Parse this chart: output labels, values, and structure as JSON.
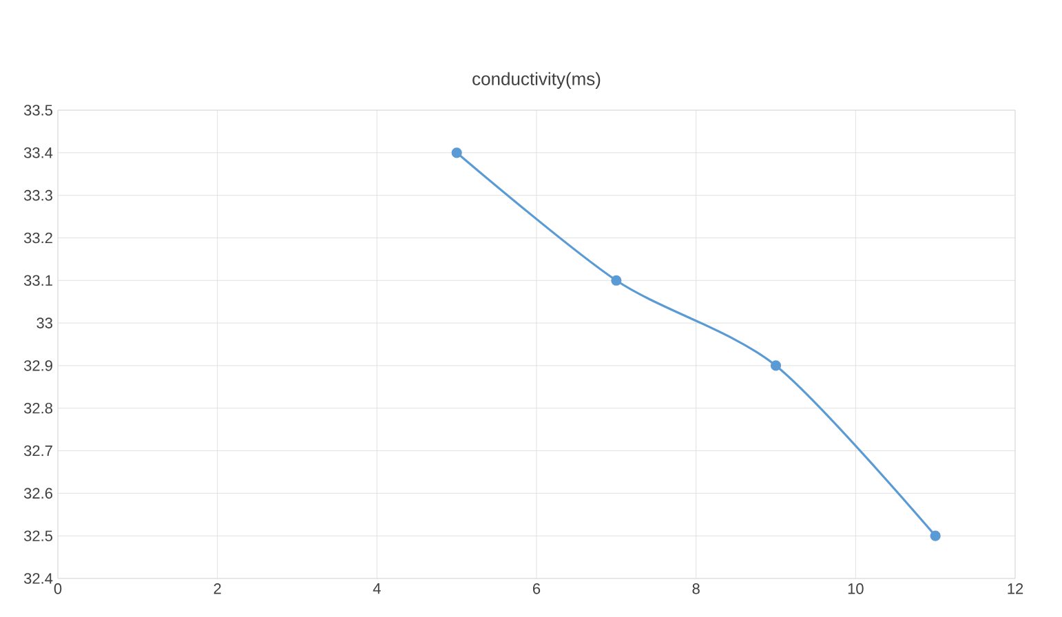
{
  "chart_data": {
    "type": "line",
    "title": "conductivity(ms)",
    "x": [
      5,
      7,
      9,
      11
    ],
    "series": [
      {
        "color": "#5b9bd5",
        "values": [
          33.4,
          33.1,
          32.9,
          32.5
        ]
      }
    ],
    "xlim": [
      0,
      12
    ],
    "xticks": [
      0,
      2,
      4,
      6,
      8,
      10,
      12
    ],
    "ylim": [
      32.4,
      33.5
    ],
    "yticks": [
      32.4,
      32.5,
      32.6,
      32.7,
      32.8,
      32.9,
      33,
      33.1,
      33.2,
      33.3,
      33.4,
      33.5
    ],
    "grid": true,
    "marker": "circle",
    "line_style": "solid"
  }
}
